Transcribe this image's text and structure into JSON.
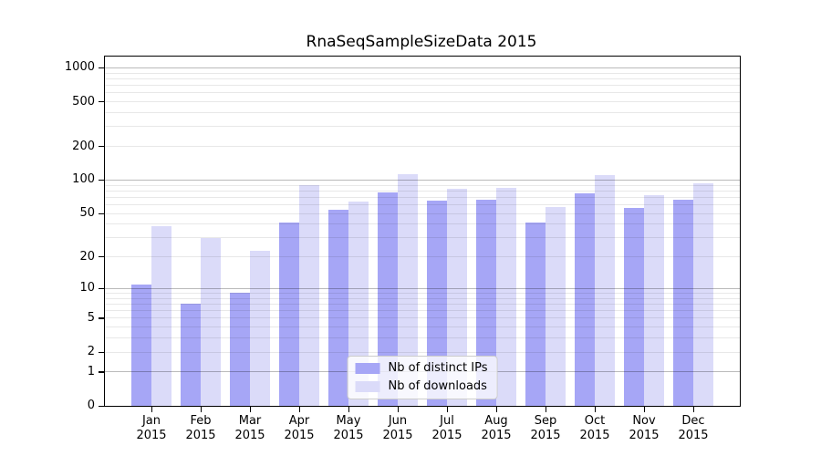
{
  "title": "RnaSeqSampleSizeData 2015",
  "chart_data": {
    "type": "bar",
    "title": "RnaSeqSampleSizeData 2015",
    "x_tick_labels": [
      [
        "Jan",
        "2015"
      ],
      [
        "Feb",
        "2015"
      ],
      [
        "Mar",
        "2015"
      ],
      [
        "Apr",
        "2015"
      ],
      [
        "May",
        "2015"
      ],
      [
        "Jun",
        "2015"
      ],
      [
        "Jul",
        "2015"
      ],
      [
        "Aug",
        "2015"
      ],
      [
        "Sep",
        "2015"
      ],
      [
        "Oct",
        "2015"
      ],
      [
        "Nov",
        "2015"
      ],
      [
        "Dec",
        "2015"
      ]
    ],
    "series": [
      {
        "name": "Nb of distinct IPs",
        "color": "#a6a6f6",
        "values": [
          11,
          7,
          9,
          41,
          54,
          78,
          65,
          67,
          41,
          76,
          56,
          66
        ]
      },
      {
        "name": "Nb of downloads",
        "color": "#dbdbf9",
        "values": [
          38,
          30,
          23,
          90,
          64,
          112,
          83,
          85,
          57,
          110,
          73,
          93
        ]
      }
    ],
    "xlabel": "",
    "ylabel": "",
    "yscale": "log1p",
    "ylim": [
      0,
      1260
    ],
    "yticks": [
      0,
      1,
      2,
      5,
      10,
      20,
      50,
      100,
      200,
      500,
      1000
    ],
    "grid": {
      "orientation": "horizontal",
      "major": [
        1,
        10,
        100,
        1000
      ],
      "minor": [
        2,
        3,
        4,
        5,
        6,
        7,
        8,
        9,
        20,
        30,
        40,
        50,
        60,
        70,
        80,
        90,
        200,
        300,
        400,
        500,
        600,
        700,
        800,
        900
      ]
    },
    "legend": {
      "position": "lower center",
      "entries": [
        "Nb of distinct IPs",
        "Nb of downloads"
      ]
    }
  }
}
